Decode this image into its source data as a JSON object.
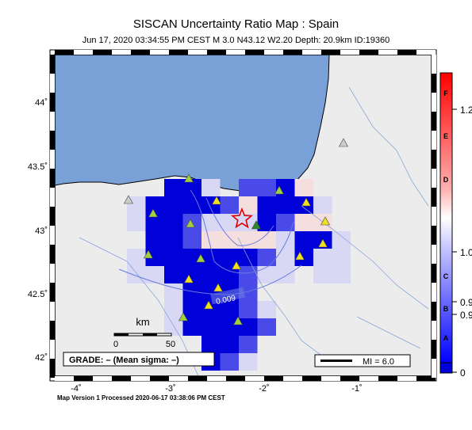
{
  "title": "SISCAN Uncertainty Ratio Map : Spain",
  "subtitle": "Jun 17, 2020 03:34:55 PM CEST   M 3.0   N43.12 W2.20   Depth: 20.9km   ID:19360",
  "footer": "Map Version 1 Processed 2020-06-17 03:38:06 PM CEST",
  "x_ticks": [
    "-4˚",
    "-3˚",
    "-2˚",
    "-1˚"
  ],
  "y_ticks": [
    "44˚",
    "43.5˚",
    "43˚",
    "42.5˚",
    "42˚"
  ],
  "grade_box": "GRADE: – (Mean sigma: –)",
  "mi_box": "MI = 6.0",
  "scalebar": {
    "unit": "km",
    "start": "0",
    "end": "50"
  },
  "contour_label": "0.009",
  "colorbar": {
    "letters": [
      "F",
      "E",
      "D",
      "C",
      "B",
      "A"
    ],
    "right_labels": [
      "1.2",
      "1.0",
      "0.9",
      "0.9",
      "0"
    ]
  },
  "colors": {
    "ocean": "#7aa0d8",
    "land": "#ececec",
    "high": "#0000d8",
    "epicenter": "#e00000",
    "station": "#a0d040"
  }
}
